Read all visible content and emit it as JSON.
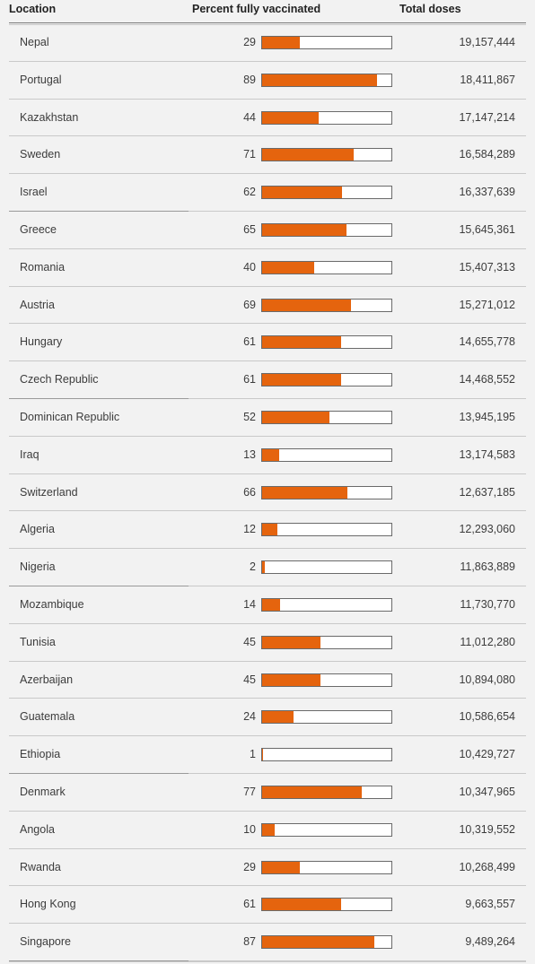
{
  "header": {
    "location_label": "Location",
    "percent_label": "Percent fully vaccinated",
    "doses_label": "Total doses"
  },
  "colors": {
    "bar_fill": "#e5640e",
    "bar_border": "#6a6a6a",
    "background": "#f2f2f2"
  },
  "chart_data": {
    "type": "table",
    "columns": [
      "Location",
      "Percent fully vaccinated",
      "Total doses"
    ],
    "rows": [
      {
        "location": "Nepal",
        "percent": 29,
        "doses": "19,157,444"
      },
      {
        "location": "Portugal",
        "percent": 89,
        "doses": "18,411,867"
      },
      {
        "location": "Kazakhstan",
        "percent": 44,
        "doses": "17,147,214"
      },
      {
        "location": "Sweden",
        "percent": 71,
        "doses": "16,584,289"
      },
      {
        "location": "Israel",
        "percent": 62,
        "doses": "16,337,639"
      },
      {
        "location": "Greece",
        "percent": 65,
        "doses": "15,645,361"
      },
      {
        "location": "Romania",
        "percent": 40,
        "doses": "15,407,313"
      },
      {
        "location": "Austria",
        "percent": 69,
        "doses": "15,271,012"
      },
      {
        "location": "Hungary",
        "percent": 61,
        "doses": "14,655,778"
      },
      {
        "location": "Czech Republic",
        "percent": 61,
        "doses": "14,468,552"
      },
      {
        "location": "Dominican Republic",
        "percent": 52,
        "doses": "13,945,195"
      },
      {
        "location": "Iraq",
        "percent": 13,
        "doses": "13,174,583"
      },
      {
        "location": "Switzerland",
        "percent": 66,
        "doses": "12,637,185"
      },
      {
        "location": "Algeria",
        "percent": 12,
        "doses": "12,293,060"
      },
      {
        "location": "Nigeria",
        "percent": 2,
        "doses": "11,863,889"
      },
      {
        "location": "Mozambique",
        "percent": 14,
        "doses": "11,730,770"
      },
      {
        "location": "Tunisia",
        "percent": 45,
        "doses": "11,012,280"
      },
      {
        "location": "Azerbaijan",
        "percent": 45,
        "doses": "10,894,080"
      },
      {
        "location": "Guatemala",
        "percent": 24,
        "doses": "10,586,654"
      },
      {
        "location": "Ethiopia",
        "percent": 1,
        "doses": "10,429,727"
      },
      {
        "location": "Denmark",
        "percent": 77,
        "doses": "10,347,965"
      },
      {
        "location": "Angola",
        "percent": 10,
        "doses": "10,319,552"
      },
      {
        "location": "Rwanda",
        "percent": 29,
        "doses": "10,268,499"
      },
      {
        "location": "Hong Kong",
        "percent": 61,
        "doses": "9,663,557"
      },
      {
        "location": "Singapore",
        "percent": 87,
        "doses": "9,489,264"
      }
    ],
    "bar_max_percent": 100
  }
}
